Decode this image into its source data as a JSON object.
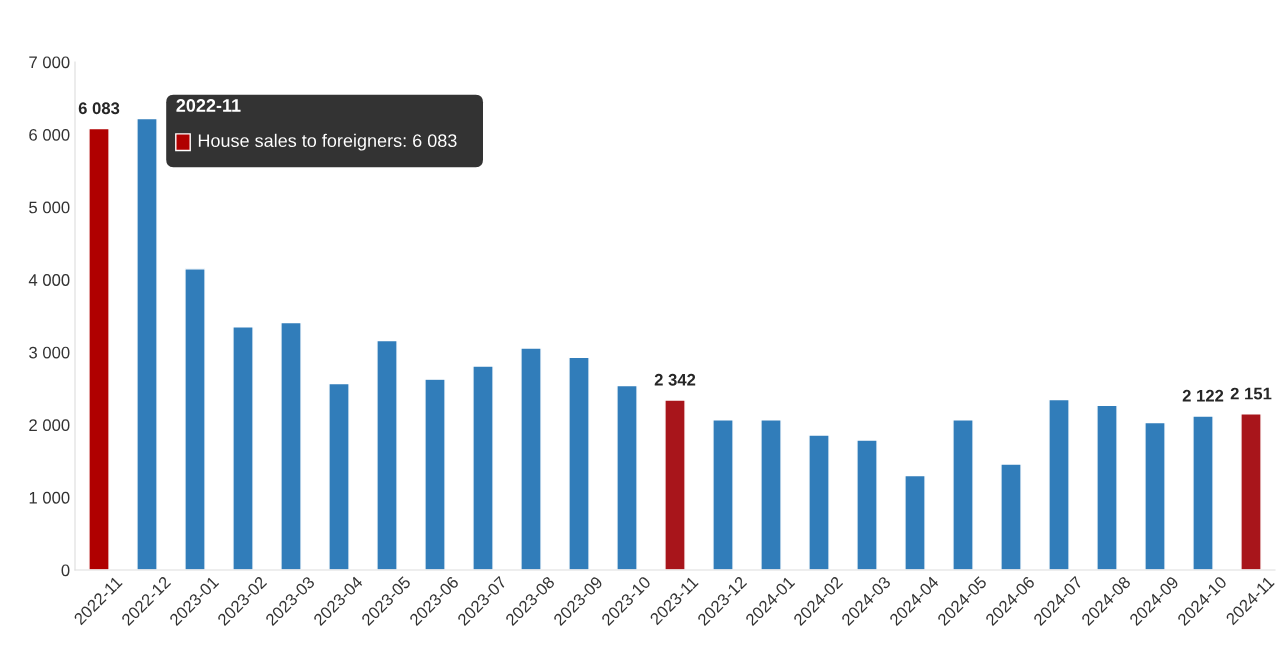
{
  "chart_data": {
    "type": "bar",
    "categories": [
      "2022-11",
      "2022-12",
      "2023-01",
      "2023-02",
      "2023-03",
      "2023-04",
      "2023-05",
      "2023-06",
      "2023-07",
      "2023-08",
      "2023-09",
      "2023-10",
      "2023-11",
      "2023-12",
      "2024-01",
      "2024-02",
      "2024-03",
      "2024-04",
      "2024-05",
      "2024-06",
      "2024-07",
      "2024-08",
      "2024-09",
      "2024-10",
      "2024-11"
    ],
    "series": [
      {
        "values": [
          6083,
          6220,
          4150,
          3350,
          3410,
          2570,
          3160,
          2630,
          2810,
          3060,
          2930,
          2540,
          2342,
          2070,
          2070,
          1860,
          1790,
          1300,
          2070,
          1460,
          2350,
          2270,
          2030,
          2122,
          2151
        ],
        "colors": [
          "#b00000",
          "#317dba",
          "#317dba",
          "#317dba",
          "#317dba",
          "#317dba",
          "#317dba",
          "#317dba",
          "#317dba",
          "#317dba",
          "#317dba",
          "#317dba",
          "#a8151b",
          "#317dba",
          "#317dba",
          "#317dba",
          "#317dba",
          "#317dba",
          "#317dba",
          "#317dba",
          "#317dba",
          "#317dba",
          "#317dba",
          "#317dba",
          "#a8151b"
        ],
        "value_labels": [
          "6 083",
          null,
          null,
          null,
          null,
          null,
          null,
          null,
          null,
          null,
          null,
          null,
          "2 342",
          null,
          null,
          null,
          null,
          null,
          null,
          null,
          null,
          null,
          null,
          "2 122",
          "2 151"
        ]
      }
    ],
    "annotations": [
      "2022-11",
      "House sales to foreigners: 6 083"
    ],
    "ylim": [
      0,
      7000
    ],
    "yticks": [
      {
        "value": 0,
        "label": "0"
      },
      {
        "value": 1000,
        "label": "1 000"
      },
      {
        "value": 2000,
        "label": "2 000"
      },
      {
        "value": 3000,
        "label": "3 000"
      },
      {
        "value": 4000,
        "label": "4 000"
      },
      {
        "value": 5000,
        "label": "5 000"
      },
      {
        "value": 6000,
        "label": "6 000"
      },
      {
        "value": 7000,
        "label": "7 000"
      }
    ],
    "grid": false,
    "legend": false
  }
}
